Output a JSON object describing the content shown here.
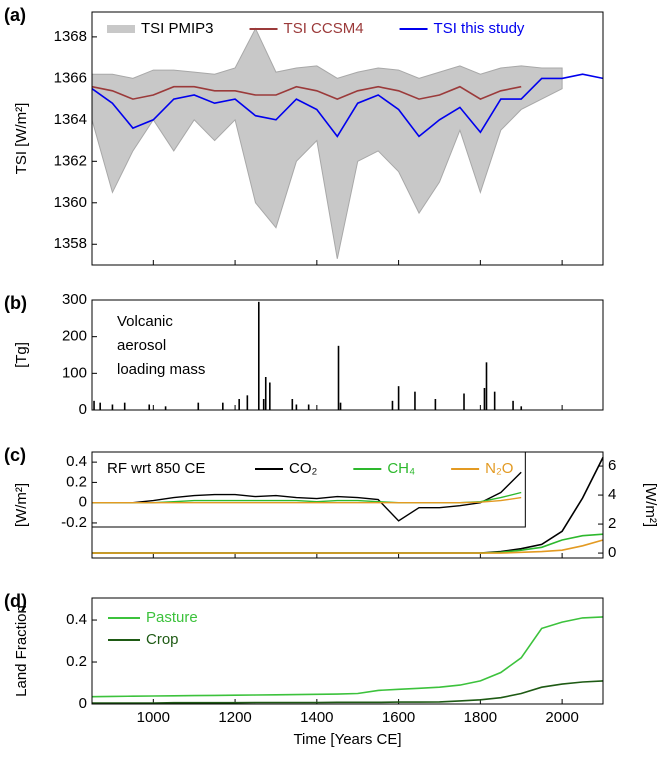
{
  "chart_data": [
    {
      "type": "line",
      "label": "(a)",
      "ylabel": "TSI [W/m²]",
      "xlim": [
        850,
        2100
      ],
      "ylim": [
        1357,
        1369.2
      ],
      "yticks": [
        1358,
        1360,
        1362,
        1364,
        1366,
        1368
      ],
      "xticks": [
        1000,
        1200,
        1400,
        1600,
        1800,
        2000
      ],
      "x": [
        850,
        900,
        950,
        1000,
        1050,
        1100,
        1150,
        1200,
        1250,
        1300,
        1350,
        1400,
        1450,
        1500,
        1550,
        1600,
        1650,
        1700,
        1750,
        1800,
        1850,
        1900,
        1950,
        2000,
        2050,
        2100
      ],
      "series": [
        {
          "name": "TSI PMIP3",
          "color": "#c8c8c8",
          "low": [
            1364,
            1360.5,
            1362.5,
            1364,
            1362.5,
            1364,
            1363,
            1364,
            1360,
            1358.8,
            1362,
            1363,
            1357.3,
            1362,
            1362.5,
            1361.5,
            1359.5,
            1361,
            1363.5,
            1360.5,
            1363.5,
            1364.5,
            1365,
            1365.5,
            null,
            null
          ],
          "high": [
            1366.2,
            1366.2,
            1366,
            1366.4,
            1366.4,
            1366.3,
            1366.2,
            1366.5,
            1368.4,
            1366.3,
            1366.5,
            1366.6,
            1366,
            1366.3,
            1366.5,
            1366.4,
            1366,
            1366.3,
            1366.6,
            1366.2,
            1366.5,
            1366.6,
            1366.5,
            1366.5,
            null,
            null
          ]
        },
        {
          "name": "TSI CCSM4",
          "color": "#9b3a3a",
          "values": [
            1365.6,
            1365.4,
            1365,
            1365.2,
            1365.6,
            1365.6,
            1365.4,
            1365.4,
            1365.2,
            1365.2,
            1365.6,
            1365.4,
            1365,
            1365.4,
            1365.6,
            1365.4,
            1365,
            1365.2,
            1365.6,
            1365,
            1365.4,
            1365.6,
            null,
            null,
            null,
            null
          ]
        },
        {
          "name": "TSI this study",
          "color": "#0000ee",
          "values": [
            1365.5,
            1364.8,
            1363.6,
            1364,
            1365,
            1365.2,
            1364.8,
            1365,
            1364.2,
            1364,
            1365,
            1364.5,
            1363.2,
            1364.8,
            1365.2,
            1364.5,
            1363.2,
            1364,
            1364.6,
            1363.4,
            1365,
            1365,
            1366,
            1366,
            1366.2,
            1366
          ]
        }
      ]
    },
    {
      "type": "bar",
      "label": "(b)",
      "ylabel": "[Tg]",
      "annotation": [
        "Volcanic",
        "aerosol",
        "loading mass"
      ],
      "xlim": [
        850,
        2100
      ],
      "ylim": [
        0,
        300
      ],
      "yticks": [
        0,
        100,
        200,
        300
      ],
      "xticks": [
        1000,
        1200,
        1400,
        1600,
        1800,
        2000
      ],
      "color": "#000000",
      "x": [
        855,
        870,
        900,
        930,
        990,
        1030,
        1110,
        1170,
        1210,
        1230,
        1258,
        1270,
        1275,
        1285,
        1340,
        1350,
        1380,
        1453,
        1458,
        1585,
        1600,
        1640,
        1690,
        1760,
        1810,
        1815,
        1835,
        1880,
        1900
      ],
      "values": [
        25,
        20,
        15,
        20,
        15,
        10,
        20,
        20,
        30,
        40,
        295,
        30,
        90,
        75,
        30,
        15,
        15,
        175,
        20,
        25,
        65,
        50,
        30,
        45,
        60,
        130,
        50,
        25,
        10
      ]
    },
    {
      "type": "line",
      "label": "(c)",
      "ylabel": "[W/m²]",
      "y2label": "[W/m²]",
      "legend_title": "RF wrt 850 CE",
      "xlim": [
        850,
        2100
      ],
      "xticks": [
        1000,
        1200,
        1400,
        1600,
        1800,
        2000
      ],
      "y2lim": [
        -0.34,
        6.97
      ],
      "y2ticks": [
        0,
        2,
        4,
        6
      ],
      "x": [
        850,
        900,
        950,
        1000,
        1050,
        1100,
        1150,
        1200,
        1250,
        1300,
        1350,
        1400,
        1450,
        1500,
        1550,
        1600,
        1650,
        1700,
        1750,
        1800,
        1850,
        1900,
        1950,
        2000,
        2050,
        2100
      ],
      "series": [
        {
          "name": "CO₂",
          "color": "#000000",
          "axis": "y2",
          "values": [
            0,
            0,
            0,
            0,
            0,
            0,
            0,
            0,
            0,
            0,
            0,
            0,
            0,
            0,
            0,
            0,
            0,
            0,
            0,
            0,
            0.1,
            0.3,
            0.6,
            1.5,
            3.8,
            6.6
          ]
        },
        {
          "name": "CH₄",
          "color": "#2db82d",
          "axis": "y2",
          "values": [
            0,
            0,
            0,
            0,
            0,
            0,
            0,
            0,
            0,
            0,
            0,
            0,
            0,
            0,
            0,
            0,
            0,
            0,
            0,
            0,
            0.05,
            0.2,
            0.4,
            0.9,
            1.2,
            1.3
          ]
        },
        {
          "name": "N₂O",
          "color": "#e39a22",
          "axis": "y2",
          "values": [
            0,
            0,
            0,
            0,
            0,
            0,
            0,
            0,
            0,
            0,
            0,
            0,
            0,
            0,
            0,
            0,
            0,
            0,
            0,
            0,
            0,
            0.05,
            0.1,
            0.2,
            0.5,
            0.9
          ]
        }
      ],
      "inset": {
        "xlim": [
          850,
          1910
        ],
        "ylim": [
          -0.24,
          0.5
        ],
        "yticks": [
          -0.2,
          0,
          0.2,
          0.4
        ],
        "x": [
          850,
          900,
          950,
          1000,
          1050,
          1100,
          1150,
          1200,
          1250,
          1300,
          1350,
          1400,
          1450,
          1500,
          1550,
          1600,
          1650,
          1700,
          1750,
          1800,
          1850,
          1900
        ],
        "series": [
          {
            "values": [
              0,
              0,
              0,
              0.02,
              0.05,
              0.07,
              0.08,
              0.08,
              0.06,
              0.07,
              0.05,
              0.04,
              0.06,
              0.05,
              0.03,
              -0.18,
              -0.05,
              -0.05,
              -0.03,
              0,
              0.1,
              0.3
            ]
          },
          {
            "values": [
              0,
              0,
              0,
              0,
              0.01,
              0.02,
              0.02,
              0.02,
              0.02,
              0.02,
              0.02,
              0.01,
              0.02,
              0.02,
              0.01,
              0,
              0,
              0,
              0,
              0.01,
              0.05,
              0.1
            ]
          },
          {
            "values": [
              0,
              0,
              0,
              0,
              0,
              0,
              0,
              0,
              0,
              0,
              0,
              0,
              0,
              0,
              0,
              0,
              0,
              0,
              0,
              0.005,
              0.02,
              0.05
            ]
          }
        ]
      }
    },
    {
      "type": "line",
      "label": "(d)",
      "ylabel": "Land Fraction",
      "xlabel": "Time [Years CE]",
      "xlim": [
        850,
        2100
      ],
      "ylim": [
        0,
        0.505
      ],
      "yticks": [
        0,
        0.2,
        0.4
      ],
      "xticks": [
        1000,
        1200,
        1400,
        1600,
        1800,
        2000
      ],
      "legend_column": true,
      "x": [
        850,
        900,
        950,
        1000,
        1050,
        1100,
        1150,
        1200,
        1250,
        1300,
        1350,
        1400,
        1450,
        1500,
        1550,
        1600,
        1650,
        1700,
        1750,
        1800,
        1850,
        1900,
        1950,
        2000,
        2050,
        2100
      ],
      "series": [
        {
          "name": "Pasture",
          "color": "#3cc23c",
          "values": [
            0.035,
            0.036,
            0.037,
            0.038,
            0.039,
            0.04,
            0.041,
            0.042,
            0.043,
            0.044,
            0.045,
            0.046,
            0.047,
            0.05,
            0.065,
            0.07,
            0.075,
            0.08,
            0.09,
            0.11,
            0.15,
            0.22,
            0.36,
            0.39,
            0.41,
            0.415
          ]
        },
        {
          "name": "Crop",
          "color": "#1e5a14",
          "values": [
            0.005,
            0.005,
            0.005,
            0.005,
            0.006,
            0.006,
            0.006,
            0.006,
            0.007,
            0.007,
            0.007,
            0.007,
            0.008,
            0.008,
            0.008,
            0.009,
            0.009,
            0.01,
            0.015,
            0.02,
            0.03,
            0.05,
            0.08,
            0.095,
            0.105,
            0.11
          ]
        }
      ]
    }
  ]
}
